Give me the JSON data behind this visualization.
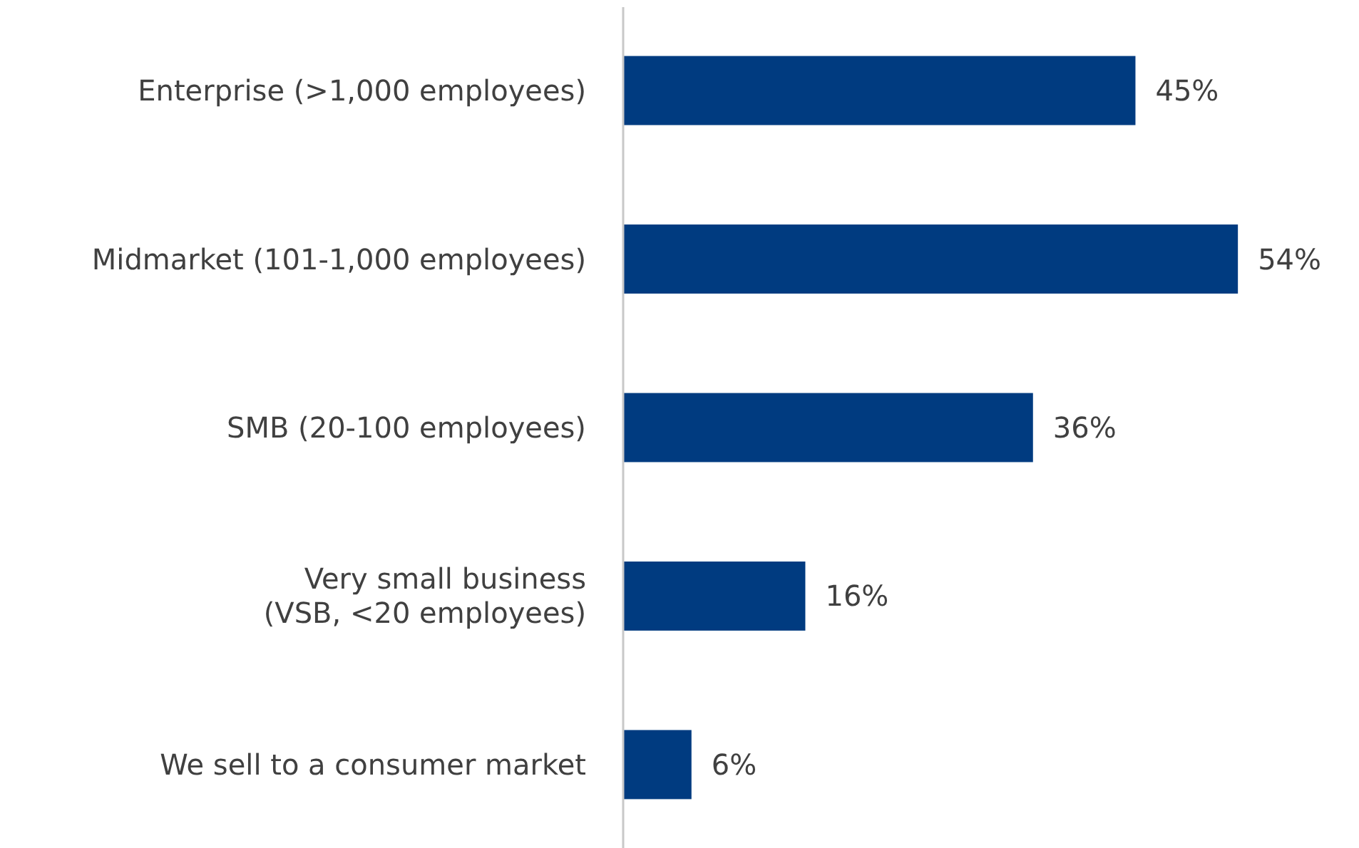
{
  "chart_data": {
    "type": "bar",
    "orientation": "horizontal",
    "categories": [
      "Enterprise  (>1,000 employees)",
      "Midmarket (101-1,000 employees)",
      "SMB (20-100 employees)",
      "Very small business\n(VSB, <20 employees)",
      "We sell to a consumer market"
    ],
    "values": [
      45,
      54,
      36,
      16,
      6
    ],
    "value_labels": [
      "45%",
      "54%",
      "36%",
      "16%",
      "6%"
    ],
    "color": "#003b80"
  }
}
